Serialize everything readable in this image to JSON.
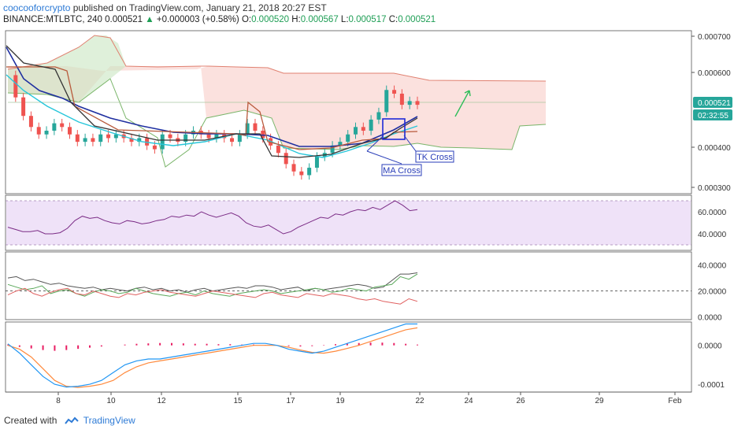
{
  "header": {
    "author": "coocooforcrypto",
    "published_text": "published on TradingView.com, January 21, 2018 20:27 EST",
    "symbol": "BINANCE:MTLBTC, 240",
    "last": "0.000521",
    "change_arrow": "▲",
    "change": "+0.000003 (+0.58%)",
    "o_label": "O:",
    "o_value": "0.000520",
    "h_label": "H:",
    "h_value": "0.000567",
    "l_label": "L:",
    "l_value": "0.000517",
    "c_label": "C:",
    "c_value": "0.000521"
  },
  "footer": {
    "created_with": "Created with",
    "brand": "TradingView"
  },
  "colors": {
    "up": "#26a69a",
    "down": "#ef5350",
    "cloud_red": "#f8c9c2",
    "cloud_green": "#c9e6c1",
    "tenkan": "#333333",
    "kijun": "#b85a3c",
    "ma_fast": "#26c6da",
    "ma_slow": "#1f2fa0",
    "rsi": "#7b2c86",
    "rsi_band": "#efe2f8",
    "macd": "#2196f3",
    "signal": "#ff8a3d",
    "hist": "#e91e63"
  },
  "chart_data": {
    "type": "line",
    "x": [
      "8",
      "10",
      "12",
      "15",
      "17",
      "19",
      "22",
      "24",
      "26",
      "29",
      "Feb"
    ],
    "price_panel": {
      "y_ticks": [
        "0.000700",
        "0.000600",
        "0.000400",
        "0.000300"
      ],
      "ylim": [
        0.00028,
        0.00072
      ],
      "last_price_label": "0.000521",
      "countdown_label": "02:32:55",
      "annotations": [
        "TK Cross",
        "MA Cross"
      ],
      "close_series": [
        0.0006,
        0.00054,
        0.00049,
        0.00046,
        0.00044,
        0.00045,
        0.00047,
        0.00046,
        0.00044,
        0.00042,
        0.00043,
        0.00042,
        0.00044,
        0.00043,
        0.00044,
        0.00043,
        0.00042,
        0.00043,
        0.00041,
        0.0004,
        0.00044,
        0.00043,
        0.00042,
        0.00044,
        0.00045,
        0.00044,
        0.00043,
        0.00044,
        0.00043,
        0.00042,
        0.00044,
        0.00047,
        0.00045,
        0.00043,
        0.00041,
        0.00039,
        0.00036,
        0.00034,
        0.00033,
        0.00035,
        0.00038,
        0.00039,
        0.00041,
        0.00042,
        0.00044,
        0.00046,
        0.00045,
        0.00048,
        0.0005,
        0.00056,
        0.00055,
        0.00052,
        0.00053,
        0.00052
      ]
    },
    "rsi_panel": {
      "y_ticks": [
        "60.0000",
        "40.0000"
      ],
      "ylim": [
        25,
        75
      ],
      "band": [
        30,
        70
      ],
      "values": [
        46,
        44,
        42,
        42,
        43,
        40,
        40,
        41,
        45,
        52,
        56,
        54,
        55,
        52,
        50,
        49,
        52,
        51,
        49,
        50,
        52,
        53,
        56,
        55,
        57,
        56,
        60,
        57,
        55,
        57,
        59,
        56,
        50,
        47,
        46,
        48,
        44,
        40,
        42,
        46,
        49,
        52,
        55,
        54,
        58,
        57,
        60,
        62,
        61,
        64,
        62,
        66,
        70,
        66,
        61,
        62
      ]
    },
    "dmi_panel": {
      "y_ticks": [
        "40.0000",
        "20.0000",
        "0.0000"
      ],
      "ylim": [
        -2,
        50
      ],
      "reference_level": 20,
      "series": [
        {
          "values": [
            30,
            31,
            28,
            29,
            27,
            25,
            26,
            24,
            23,
            22,
            23,
            21,
            22,
            21,
            20,
            22,
            23,
            21,
            22,
            20,
            21,
            19,
            21,
            22,
            20,
            21,
            22,
            23,
            22,
            24,
            24,
            23,
            21,
            22,
            23,
            20,
            22,
            21,
            22,
            23,
            24,
            25,
            24,
            22,
            23,
            28,
            33,
            33,
            34
          ]
        },
        {
          "values": [
            25,
            23,
            21,
            22,
            24,
            18,
            20,
            21,
            18,
            16,
            19,
            21,
            20,
            18,
            19,
            22,
            20,
            18,
            17,
            16,
            18,
            19,
            17,
            20,
            18,
            17,
            16,
            18,
            19,
            20,
            21,
            20,
            18,
            19,
            20,
            21,
            22,
            21,
            19,
            20,
            22,
            21,
            20,
            23,
            24,
            25,
            31,
            29,
            33
          ]
        },
        {
          "values": [
            17,
            20,
            22,
            18,
            16,
            19,
            21,
            22,
            18,
            17,
            20,
            18,
            16,
            15,
            18,
            17,
            19,
            20,
            21,
            19,
            18,
            17,
            16,
            18,
            20,
            19,
            18,
            17,
            16,
            15,
            18,
            19,
            17,
            16,
            15,
            18,
            17,
            16,
            18,
            17,
            16,
            14,
            13,
            14,
            12,
            11,
            10,
            14,
            12
          ]
        }
      ]
    },
    "macd_panel": {
      "y_ticks": [
        "0.0000",
        "-0.0001"
      ],
      "ylim": [
        -0.00012,
        6e-05
      ],
      "macd": [
        4e-06,
        -2e-05,
        -5e-05,
        -8e-05,
        -0.0001,
        -0.000107,
        -0.000105,
        -0.0001,
        -9e-05,
        -7e-05,
        -5e-05,
        -4e-05,
        -3.5e-05,
        -3.5e-05,
        -3e-05,
        -2.5e-05,
        -2e-05,
        -1.5e-05,
        -1e-05,
        -5e-06,
        0.0,
        5e-06,
        5e-06,
        0.0,
        -1e-05,
        -1.5e-05,
        -2e-05,
        -1.5e-05,
        -5e-06,
        5e-06,
        1.5e-05,
        2.5e-05,
        3.5e-05,
        4.5e-05,
        5.5e-05,
        5.5e-05
      ],
      "signal": [
        0.0,
        -1e-05,
        -3e-05,
        -6e-05,
        -9e-05,
        -0.000105,
        -0.000108,
        -0.000105,
        -0.0001,
        -9e-05,
        -7e-05,
        -5.5e-05,
        -4.5e-05,
        -4e-05,
        -3.5e-05,
        -3e-05,
        -2.5e-05,
        -2e-05,
        -1.5e-05,
        -1e-05,
        -5e-06,
        0.0,
        0.0,
        0.0,
        -5e-06,
        -1.2e-05,
        -1.8e-05,
        -2e-05,
        -1.5e-05,
        -8e-06,
        0.0,
        1e-05,
        2e-05,
        3e-05,
        4e-05,
        4.5e-05
      ],
      "hist": [
        2e-06,
        -4e-06,
        -8e-06,
        -1.2e-05,
        -1.4e-05,
        -1.2e-05,
        -9e-06,
        -6e-06,
        -3e-06,
        0.0,
        2e-06,
        4e-06,
        5e-06,
        6e-06,
        6e-06,
        5e-06,
        4e-06,
        4e-06,
        3e-06,
        3e-06,
        2e-06,
        2e-06,
        1e-06,
        0.0,
        -2e-06,
        -3e-06,
        -2e-06,
        1e-06,
        3e-06,
        5e-06,
        6e-06,
        7e-06,
        7e-06,
        6e-06,
        4e-06,
        2e-06
      ]
    }
  }
}
